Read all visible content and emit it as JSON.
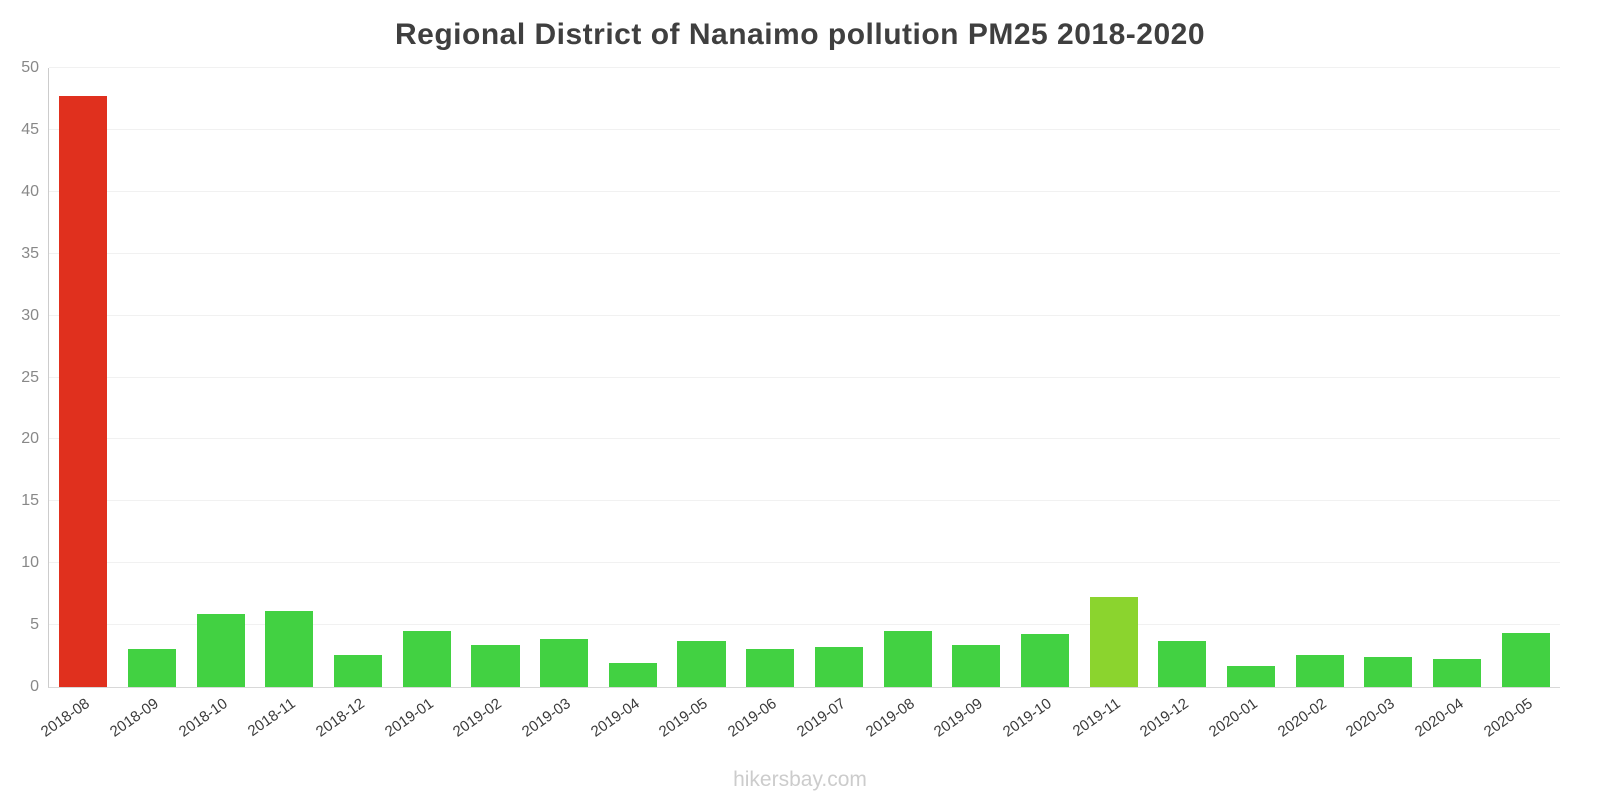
{
  "title": "Regional District of Nanaimo pollution PM25 2018-2020",
  "footer": "hikersbay.com",
  "chart_data": {
    "type": "bar",
    "title": "Regional District of Nanaimo pollution PM25 2018-2020",
    "xlabel": "",
    "ylabel": "",
    "ylim": [
      0,
      50
    ],
    "yticks": [
      0,
      5,
      10,
      15,
      20,
      25,
      30,
      35,
      40,
      45,
      50
    ],
    "grid": true,
    "legend": false,
    "categories": [
      "2018-08",
      "2018-09",
      "2018-10",
      "2018-11",
      "2018-12",
      "2019-01",
      "2019-02",
      "2019-03",
      "2019-04",
      "2019-05",
      "2019-06",
      "2019-07",
      "2019-08",
      "2019-09",
      "2019-10",
      "2019-11",
      "2019-12",
      "2020-01",
      "2020-02",
      "2020-03",
      "2020-04",
      "2020-05"
    ],
    "values": [
      47.7,
      3.1,
      5.9,
      6.1,
      2.6,
      4.5,
      3.4,
      3.9,
      1.9,
      3.7,
      3.1,
      3.2,
      4.5,
      3.4,
      4.3,
      7.3,
      3.7,
      1.7,
      2.6,
      2.4,
      2.3,
      4.4
    ],
    "colors": [
      "#e0301e",
      "#42d142",
      "#42d142",
      "#42d142",
      "#42d142",
      "#42d142",
      "#42d142",
      "#42d142",
      "#42d142",
      "#42d142",
      "#42d142",
      "#42d142",
      "#42d142",
      "#42d142",
      "#42d142",
      "#8bd42e",
      "#42d142",
      "#42d142",
      "#42d142",
      "#42d142",
      "#42d142",
      "#42d142"
    ],
    "accent_colors": {
      "red": "#e0301e",
      "green": "#42d142",
      "yellow_green": "#8bd42e"
    }
  }
}
